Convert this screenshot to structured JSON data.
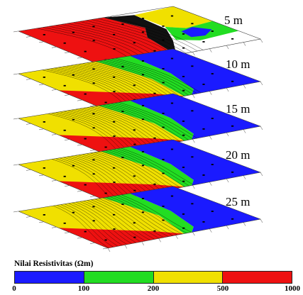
{
  "chart_data": {
    "type": "heatmap",
    "title": "",
    "layers": [
      {
        "depth": "5 m"
      },
      {
        "depth": "10 m"
      },
      {
        "depth": "15 m"
      },
      {
        "depth": "20 m"
      },
      {
        "depth": "25 m"
      }
    ],
    "legend": {
      "title": "Nilai Resistivitas (Ωm)",
      "ticks": [
        "0",
        "100",
        "200",
        "500",
        "1000"
      ],
      "classes": [
        {
          "range": [
            0,
            100
          ],
          "color": "#1a1aff"
        },
        {
          "range": [
            100,
            200
          ],
          "color": "#22dd22"
        },
        {
          "range": [
            200,
            500
          ],
          "color": "#f0e000"
        },
        {
          "range": [
            500,
            1000
          ],
          "color": "#ee1111"
        }
      ],
      "placement": "bottom"
    }
  }
}
